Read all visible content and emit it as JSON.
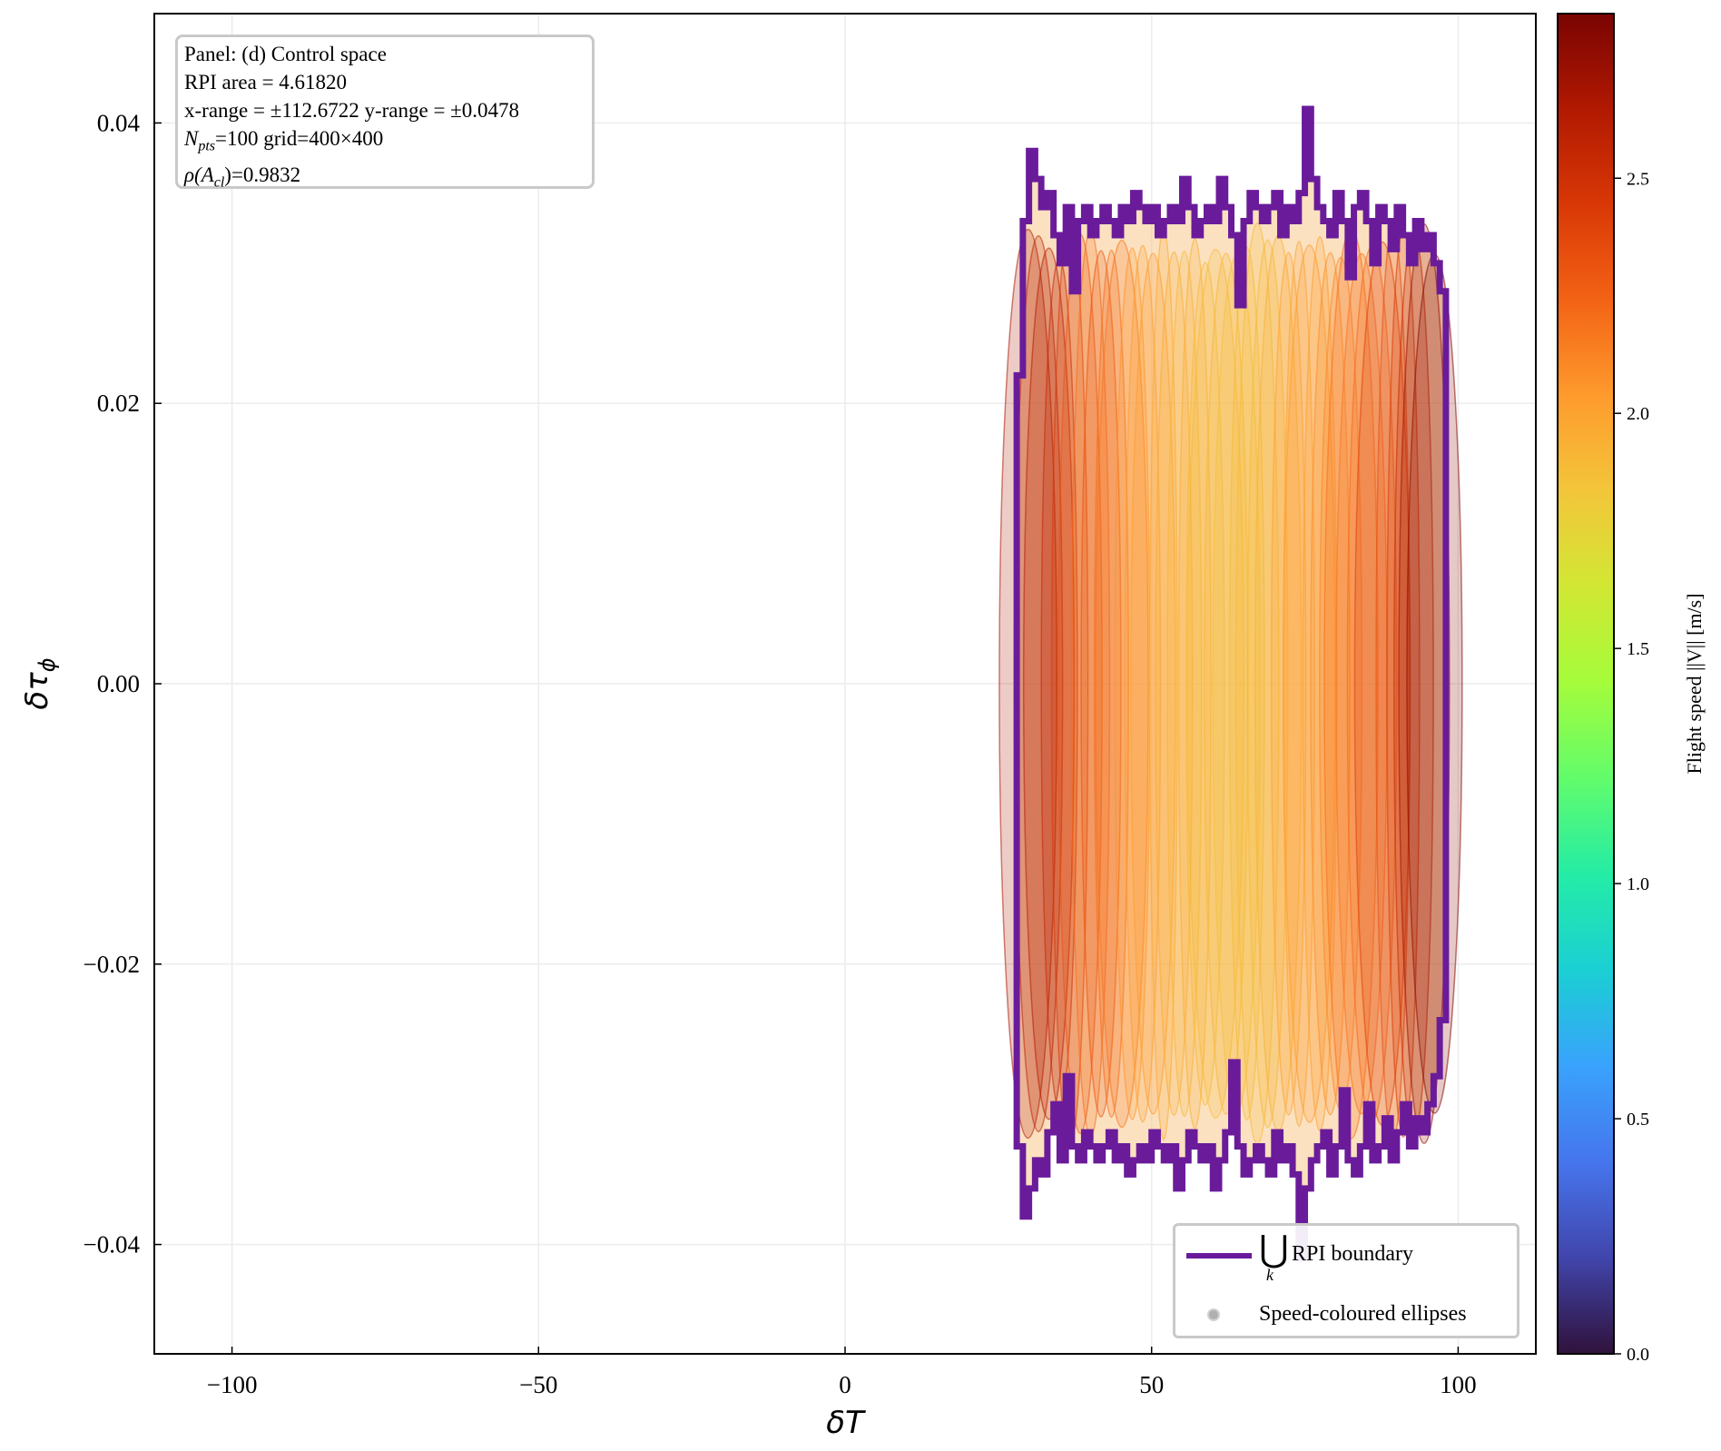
{
  "chart_data": {
    "type": "area",
    "panel": "(d) Control space",
    "xlabel": "δT",
    "ylabel": "δτ_φ",
    "xlim": [
      -112.6722,
      112.6722
    ],
    "ylim": [
      -0.0478,
      0.0478
    ],
    "xticks": [
      -100,
      -50,
      0,
      50,
      100
    ],
    "xtick_labels": [
      "−100",
      "−50",
      "0",
      "50",
      "100"
    ],
    "yticks": [
      -0.04,
      -0.02,
      0.0,
      0.02,
      0.04
    ],
    "ytick_labels": [
      "−0.04",
      "−0.02",
      "0.00",
      "0.02",
      "0.04"
    ],
    "grid": true,
    "legend_position": "lower-right",
    "rpi_boundary": {
      "name": "⋃ RPI boundary",
      "color": "#6a1b9a",
      "x_range": [
        28,
        98
      ],
      "top": [
        [
          28,
          0.022
        ],
        [
          29,
          0.033
        ],
        [
          30,
          0.038
        ],
        [
          31,
          0.036
        ],
        [
          32,
          0.034
        ],
        [
          33,
          0.035
        ],
        [
          34,
          0.032
        ],
        [
          35,
          0.03
        ],
        [
          36,
          0.034
        ],
        [
          37,
          0.028
        ],
        [
          38,
          0.033
        ],
        [
          39,
          0.034
        ],
        [
          40,
          0.032
        ],
        [
          41,
          0.033
        ],
        [
          42,
          0.034
        ],
        [
          43,
          0.033
        ],
        [
          44,
          0.032
        ],
        [
          45,
          0.034
        ],
        [
          46,
          0.033
        ],
        [
          47,
          0.035
        ],
        [
          48,
          0.034
        ],
        [
          49,
          0.033
        ],
        [
          50,
          0.034
        ],
        [
          51,
          0.032
        ],
        [
          52,
          0.033
        ],
        [
          53,
          0.034
        ],
        [
          54,
          0.033
        ],
        [
          55,
          0.036
        ],
        [
          56,
          0.034
        ],
        [
          57,
          0.032
        ],
        [
          58,
          0.033
        ],
        [
          59,
          0.034
        ],
        [
          60,
          0.033
        ],
        [
          61,
          0.036
        ],
        [
          62,
          0.034
        ],
        [
          63,
          0.032
        ],
        [
          64,
          0.027
        ],
        [
          65,
          0.033
        ],
        [
          66,
          0.035
        ],
        [
          67,
          0.034
        ],
        [
          68,
          0.033
        ],
        [
          69,
          0.034
        ],
        [
          70,
          0.035
        ],
        [
          71,
          0.032
        ],
        [
          72,
          0.034
        ],
        [
          73,
          0.033
        ],
        [
          74,
          0.035
        ],
        [
          75,
          0.041
        ],
        [
          76,
          0.036
        ],
        [
          77,
          0.034
        ],
        [
          78,
          0.033
        ],
        [
          79,
          0.032
        ],
        [
          80,
          0.035
        ],
        [
          81,
          0.033
        ],
        [
          82,
          0.029
        ],
        [
          83,
          0.034
        ],
        [
          84,
          0.035
        ],
        [
          85,
          0.033
        ],
        [
          86,
          0.03
        ],
        [
          87,
          0.034
        ],
        [
          88,
          0.033
        ],
        [
          89,
          0.031
        ],
        [
          90,
          0.034
        ],
        [
          91,
          0.032
        ],
        [
          92,
          0.03
        ],
        [
          93,
          0.033
        ],
        [
          94,
          0.031
        ],
        [
          95,
          0.032
        ],
        [
          96,
          0.03
        ],
        [
          97,
          0.028
        ],
        [
          98,
          0.024
        ]
      ],
      "bottom": [
        [
          28,
          -0.022
        ],
        [
          29,
          -0.033
        ],
        [
          30,
          -0.038
        ],
        [
          31,
          -0.036
        ],
        [
          32,
          -0.034
        ],
        [
          33,
          -0.035
        ],
        [
          34,
          -0.032
        ],
        [
          35,
          -0.03
        ],
        [
          36,
          -0.034
        ],
        [
          37,
          -0.028
        ],
        [
          38,
          -0.033
        ],
        [
          39,
          -0.034
        ],
        [
          40,
          -0.032
        ],
        [
          41,
          -0.033
        ],
        [
          42,
          -0.034
        ],
        [
          43,
          -0.033
        ],
        [
          44,
          -0.032
        ],
        [
          45,
          -0.034
        ],
        [
          46,
          -0.033
        ],
        [
          47,
          -0.035
        ],
        [
          48,
          -0.034
        ],
        [
          49,
          -0.033
        ],
        [
          50,
          -0.034
        ],
        [
          51,
          -0.032
        ],
        [
          52,
          -0.033
        ],
        [
          53,
          -0.034
        ],
        [
          54,
          -0.033
        ],
        [
          55,
          -0.036
        ],
        [
          56,
          -0.034
        ],
        [
          57,
          -0.032
        ],
        [
          58,
          -0.033
        ],
        [
          59,
          -0.034
        ],
        [
          60,
          -0.033
        ],
        [
          61,
          -0.036
        ],
        [
          62,
          -0.034
        ],
        [
          63,
          -0.032
        ],
        [
          64,
          -0.027
        ],
        [
          65,
          -0.033
        ],
        [
          66,
          -0.035
        ],
        [
          67,
          -0.034
        ],
        [
          68,
          -0.033
        ],
        [
          69,
          -0.034
        ],
        [
          70,
          -0.035
        ],
        [
          71,
          -0.032
        ],
        [
          72,
          -0.034
        ],
        [
          73,
          -0.033
        ],
        [
          74,
          -0.035
        ],
        [
          75,
          -0.041
        ],
        [
          76,
          -0.036
        ],
        [
          77,
          -0.034
        ],
        [
          78,
          -0.033
        ],
        [
          79,
          -0.032
        ],
        [
          80,
          -0.035
        ],
        [
          81,
          -0.033
        ],
        [
          82,
          -0.029
        ],
        [
          83,
          -0.034
        ],
        [
          84,
          -0.035
        ],
        [
          85,
          -0.033
        ],
        [
          86,
          -0.03
        ],
        [
          87,
          -0.034
        ],
        [
          88,
          -0.033
        ],
        [
          89,
          -0.031
        ],
        [
          90,
          -0.034
        ],
        [
          91,
          -0.032
        ],
        [
          92,
          -0.03
        ],
        [
          93,
          -0.033
        ],
        [
          94,
          -0.031
        ],
        [
          95,
          -0.032
        ],
        [
          96,
          -0.03
        ],
        [
          97,
          -0.028
        ],
        [
          98,
          -0.024
        ]
      ]
    },
    "ellipses": {
      "name": "Speed-coloured ellipses",
      "count": 40,
      "speed_min_m_s": 1.6,
      "speed_max_m_s": 2.8
    },
    "colorbar": {
      "label": "Flight speed ||V|| [m/s]",
      "range": [
        0.0,
        2.85
      ],
      "ticks": [
        0.0,
        0.5,
        1.0,
        1.5,
        2.0,
        2.5
      ],
      "tick_labels": [
        "0.0",
        "0.5",
        "1.0",
        "1.5",
        "2.0",
        "2.5"
      ],
      "colormap": "turbo",
      "colors": [
        "#30123b",
        "#4145ab",
        "#4675ed",
        "#39a2fc",
        "#1bcfd4",
        "#24eca6",
        "#61fc6c",
        "#a4fc3b",
        "#d1e834",
        "#f3c63a",
        "#fe9b2d",
        "#f36315",
        "#d93806",
        "#b11901",
        "#7a0402"
      ]
    }
  },
  "info_box": {
    "line1": "Panel: (d) Control space",
    "line2": "RPI area = 4.61820",
    "line3": "x-range = ±112.6722   y-range = ±0.0478",
    "line4_symbol": "N",
    "line4_sub": "pts",
    "line4_rest": "=100   grid=400×400",
    "line5_rho": "ρ(A",
    "line5_sub": "cl",
    "line5_rest": ")=0.9832"
  },
  "legend": {
    "union_symbol": "⋃",
    "union_sub": "k",
    "item1": "RPI boundary",
    "item2": "Speed-coloured ellipses"
  }
}
